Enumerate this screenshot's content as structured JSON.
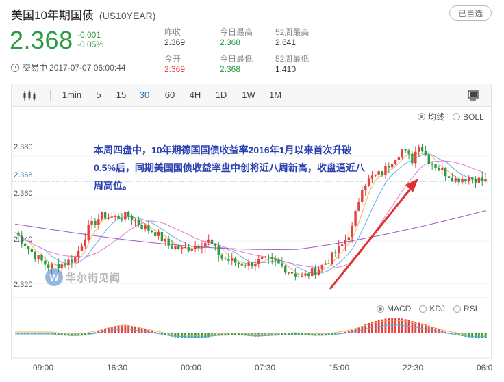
{
  "header": {
    "title": "美国10年期国债",
    "code": "(US10YEAR)",
    "selected_label": "已自选"
  },
  "quote": {
    "price": "2.368",
    "change": "-0.001",
    "change_pct": "-0.05%",
    "status": "交易中",
    "timestamp": "2017-07-07 06:00:44"
  },
  "stats": [
    {
      "label": "昨收",
      "value": "2.369",
      "color": "normal"
    },
    {
      "label": "今日最高",
      "value": "2.368",
      "color": "green"
    },
    {
      "label": "52周最高",
      "value": "2.641",
      "color": "normal"
    },
    {
      "label": "今开",
      "value": "2.369",
      "color": "red"
    },
    {
      "label": "今日最低",
      "value": "2.368",
      "color": "green"
    },
    {
      "label": "52周最低",
      "value": "1.410",
      "color": "normal"
    }
  ],
  "toolbar": {
    "intervals": [
      "1min",
      "5",
      "15",
      "30",
      "60",
      "4H",
      "1D",
      "1W",
      "1M"
    ],
    "active": "30",
    "left_icon": "candlestick-icon",
    "right_icon": "monitor-icon"
  },
  "main_legend": {
    "items": [
      "均线",
      "BOLL"
    ],
    "selected": "均线"
  },
  "sub_legend": {
    "items": [
      "MACD",
      "KDJ",
      "RSI"
    ],
    "selected": "MACD"
  },
  "chart_data": {
    "type": "candlestick",
    "y_ticks": [
      "2.380",
      "2.368",
      "2.360",
      "2.340",
      "2.320"
    ],
    "y_current": "2.368",
    "x_ticks": [
      "09:00",
      "16:30",
      "00:00",
      "07:30",
      "15:00",
      "22:30",
      "06:0"
    ],
    "ylim": [
      2.3165,
      2.4025
    ],
    "colors": {
      "up": "#e64040",
      "down": "#2d9a45",
      "ma5": "#f2b35b",
      "ma10": "#5ab0e8",
      "ma20": "#e07ad8",
      "ma60": "#9a5bc4"
    }
  },
  "annotation": "本周四盘中，10年期德国国债收益率2016年1月以来首次升破0.5%后，同期美国国债收益率盘中创将近八周新高，收盘逼近八周高位。",
  "watermark": "华尔街见闻"
}
